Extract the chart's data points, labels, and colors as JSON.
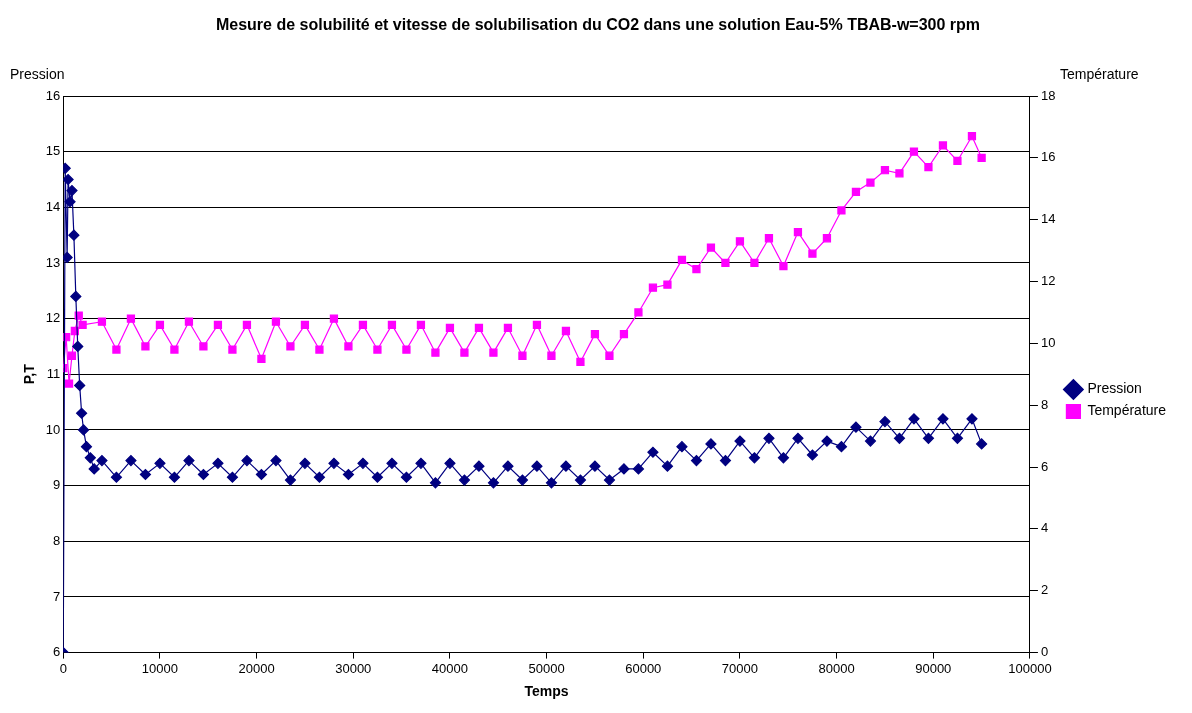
{
  "chart_data": {
    "type": "line",
    "title": "Mesure de solubilité et vitesse de solubilisation du CO2 dans une solution Eau-5% TBAB-w=300 rpm",
    "xlabel": "Temps",
    "ylabel": "P,T",
    "y2label": "Température",
    "annotations": [
      "Pression"
    ],
    "xlim": [
      0,
      100000
    ],
    "xticks": [
      0,
      10000,
      20000,
      30000,
      40000,
      50000,
      60000,
      70000,
      80000,
      90000,
      100000
    ],
    "ylim": [
      6,
      16
    ],
    "yticks": [
      6,
      7,
      8,
      9,
      10,
      11,
      12,
      13,
      14,
      15,
      16
    ],
    "y2lim": [
      0,
      18
    ],
    "y2ticks": [
      0,
      2,
      4,
      6,
      8,
      10,
      12,
      14,
      16,
      18
    ],
    "grid": "y",
    "legend": "right",
    "line_style": "solid",
    "series": [
      {
        "name": "Pression",
        "color": "#000080",
        "marker": "diamond",
        "x": [
          0,
          200,
          400,
          500,
          700,
          900,
          1100,
          1300,
          1500,
          1700,
          1900,
          2100,
          2400,
          2800,
          3200,
          4000,
          5500,
          7000,
          8500,
          10000,
          11500,
          13000,
          14500,
          16000,
          17500,
          19000,
          20500,
          22000,
          23500,
          25000,
          26500,
          28000,
          29500,
          31000,
          32500,
          34000,
          35500,
          37000,
          38500,
          40000,
          41500,
          43000,
          44500,
          46000,
          47500,
          49000,
          50500,
          52000,
          53500,
          55000,
          56500,
          58000,
          59500,
          61000,
          62500,
          64000,
          65500,
          67000,
          68500,
          70000,
          71500,
          73000,
          74500,
          76000,
          77500,
          79000,
          80500,
          82000,
          83500,
          85000,
          86500,
          88000,
          89500,
          91000,
          92500,
          94000,
          95000
        ],
        "values": [
          6,
          14.7,
          13.1,
          14.5,
          14.1,
          14.3,
          13.5,
          12.4,
          11.5,
          10.8,
          10.3,
          10.0,
          9.7,
          9.5,
          9.3,
          9.45,
          9.15,
          9.45,
          9.2,
          9.4,
          9.15,
          9.45,
          9.2,
          9.4,
          9.15,
          9.45,
          9.2,
          9.45,
          9.1,
          9.4,
          9.15,
          9.4,
          9.2,
          9.4,
          9.15,
          9.4,
          9.15,
          9.4,
          9.05,
          9.4,
          9.1,
          9.35,
          9.05,
          9.35,
          9.1,
          9.35,
          9.05,
          9.35,
          9.1,
          9.35,
          9.1,
          9.3,
          9.3,
          9.6,
          9.35,
          9.7,
          9.45,
          9.75,
          9.45,
          9.8,
          9.5,
          9.85,
          9.5,
          9.85,
          9.55,
          9.8,
          9.7,
          10.05,
          9.8,
          10.15,
          9.85,
          10.2,
          9.85,
          10.2,
          9.85,
          10.2,
          9.75
        ]
      },
      {
        "name": "Température",
        "color": "#ff00ff",
        "marker": "square",
        "axis": "y2",
        "x": [
          0,
          300,
          600,
          900,
          1200,
          1600,
          2000,
          4000,
          5500,
          7000,
          8500,
          10000,
          11500,
          13000,
          14500,
          16000,
          17500,
          19000,
          20500,
          22000,
          23500,
          25000,
          26500,
          28000,
          29500,
          31000,
          32500,
          34000,
          35500,
          37000,
          38500,
          40000,
          41500,
          43000,
          44500,
          46000,
          47500,
          49000,
          50500,
          52000,
          53500,
          55000,
          56500,
          58000,
          59500,
          61000,
          62500,
          64000,
          65500,
          67000,
          68500,
          70000,
          71500,
          73000,
          74500,
          76000,
          77500,
          79000,
          80500,
          82000,
          83500,
          85000,
          86500,
          88000,
          89500,
          91000,
          92500,
          94000,
          95000
        ],
        "values": [
          9.2,
          10.2,
          8.7,
          9.6,
          10.4,
          10.9,
          10.6,
          10.7,
          9.8,
          10.8,
          9.9,
          10.6,
          9.8,
          10.7,
          9.9,
          10.6,
          9.8,
          10.6,
          9.5,
          10.7,
          9.9,
          10.6,
          9.8,
          10.8,
          9.9,
          10.6,
          9.8,
          10.6,
          9.8,
          10.6,
          9.7,
          10.5,
          9.7,
          10.5,
          9.7,
          10.5,
          9.6,
          10.6,
          9.6,
          10.4,
          9.4,
          10.3,
          9.6,
          10.3,
          11.0,
          11.8,
          11.9,
          12.7,
          12.4,
          13.1,
          12.6,
          13.3,
          12.6,
          13.4,
          12.5,
          13.6,
          12.9,
          13.4,
          14.3,
          14.9,
          15.2,
          15.6,
          15.5,
          16.2,
          15.7,
          16.4,
          15.9,
          16.7,
          16.0
        ]
      }
    ]
  }
}
